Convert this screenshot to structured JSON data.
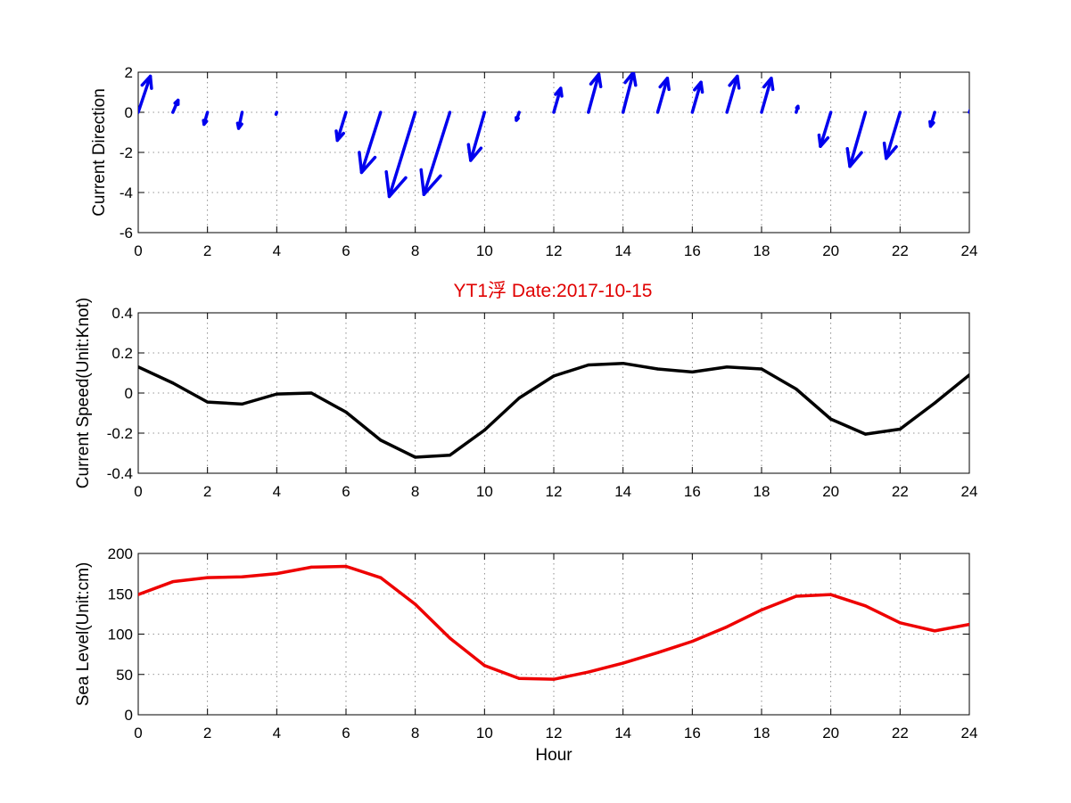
{
  "title": "YT1浮    Date:2017-10-15",
  "title_color": "#e00000",
  "chart_data": [
    {
      "type": "quiver",
      "ylabel": "Current Direction",
      "xlabel": "",
      "xlim": [
        0,
        24
      ],
      "ylim": [
        -6,
        2
      ],
      "xticks": [
        0,
        2,
        4,
        6,
        8,
        10,
        12,
        14,
        16,
        18,
        20,
        22,
        24
      ],
      "yticks": [
        -6,
        -4,
        -2,
        0,
        2
      ],
      "grid": true,
      "color": "#0000ee",
      "arrows": [
        {
          "x": 0,
          "u": 0.35,
          "v": 1.8
        },
        {
          "x": 1,
          "u": 0.15,
          "v": 0.6
        },
        {
          "x": 2,
          "u": -0.1,
          "v": -0.6
        },
        {
          "x": 3,
          "u": -0.1,
          "v": -0.8
        },
        {
          "x": 4,
          "u": -0.02,
          "v": -0.1
        },
        {
          "x": 6,
          "u": -0.25,
          "v": -1.4
        },
        {
          "x": 7,
          "u": -0.55,
          "v": -3.0
        },
        {
          "x": 8,
          "u": -0.75,
          "v": -4.2
        },
        {
          "x": 9,
          "u": -0.75,
          "v": -4.1
        },
        {
          "x": 10,
          "u": -0.4,
          "v": -2.4
        },
        {
          "x": 11,
          "u": -0.08,
          "v": -0.4
        },
        {
          "x": 12,
          "u": 0.2,
          "v": 1.2
        },
        {
          "x": 13,
          "u": 0.3,
          "v": 1.9
        },
        {
          "x": 14,
          "u": 0.3,
          "v": 2.0
        },
        {
          "x": 15,
          "u": 0.28,
          "v": 1.7
        },
        {
          "x": 16,
          "u": 0.25,
          "v": 1.5
        },
        {
          "x": 17,
          "u": 0.3,
          "v": 1.8
        },
        {
          "x": 18,
          "u": 0.28,
          "v": 1.7
        },
        {
          "x": 19,
          "u": 0.05,
          "v": 0.3
        },
        {
          "x": 20,
          "u": -0.3,
          "v": -1.7
        },
        {
          "x": 21,
          "u": -0.45,
          "v": -2.7
        },
        {
          "x": 22,
          "u": -0.4,
          "v": -2.3
        },
        {
          "x": 23,
          "u": -0.12,
          "v": -0.7
        },
        {
          "x": 24,
          "u": 0.02,
          "v": 0.1
        }
      ]
    },
    {
      "type": "line",
      "ylabel": "Current Speed(Unit:Knot)",
      "xlabel": "",
      "xlim": [
        0,
        24
      ],
      "ylim": [
        -0.4,
        0.4
      ],
      "xticks": [
        0,
        2,
        4,
        6,
        8,
        10,
        12,
        14,
        16,
        18,
        20,
        22,
        24
      ],
      "yticks": [
        -0.4,
        -0.2,
        0,
        0.2,
        0.4
      ],
      "ytick_labels": [
        "-0.4",
        "-0.2",
        "0",
        "0.2",
        "0.4"
      ],
      "grid": true,
      "color": "#000000",
      "x": [
        0,
        1,
        2,
        3,
        4,
        5,
        6,
        7,
        8,
        9,
        10,
        11,
        12,
        13,
        14,
        15,
        16,
        17,
        18,
        19,
        20,
        21,
        22,
        23,
        24
      ],
      "y": [
        0.13,
        0.05,
        -0.045,
        -0.055,
        -0.005,
        0.0,
        -0.095,
        -0.235,
        -0.32,
        -0.31,
        -0.185,
        -0.025,
        0.085,
        0.14,
        0.148,
        0.12,
        0.105,
        0.13,
        0.12,
        0.02,
        -0.13,
        -0.205,
        -0.18,
        -0.05,
        0.09
      ]
    },
    {
      "type": "line",
      "ylabel": "Sea Level(Unit:cm)",
      "xlabel": "Hour",
      "xlim": [
        0,
        24
      ],
      "ylim": [
        0,
        200
      ],
      "xticks": [
        0,
        2,
        4,
        6,
        8,
        10,
        12,
        14,
        16,
        18,
        20,
        22,
        24
      ],
      "yticks": [
        0,
        50,
        100,
        150,
        200
      ],
      "grid": true,
      "color": "#ee0000",
      "x": [
        0,
        1,
        2,
        3,
        4,
        5,
        6,
        7,
        8,
        9,
        10,
        11,
        12,
        13,
        14,
        15,
        16,
        17,
        18,
        19,
        20,
        21,
        22,
        23,
        24
      ],
      "y": [
        149,
        165,
        170,
        171,
        175,
        183,
        184,
        170,
        137,
        95,
        61,
        45,
        44,
        53,
        64,
        77,
        91,
        109,
        130,
        147,
        149,
        135,
        114,
        104,
        112
      ]
    }
  ]
}
